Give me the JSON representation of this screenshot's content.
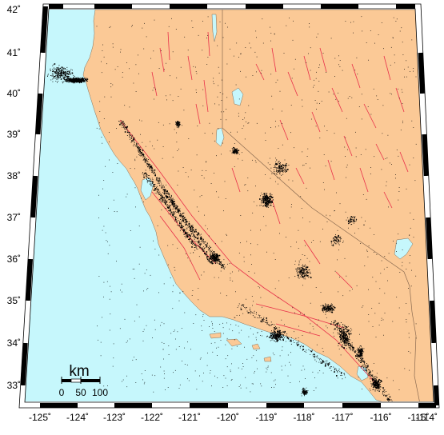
{
  "map": {
    "lat_labels": [
      "42˚",
      "41˚",
      "40˚",
      "39˚",
      "38˚",
      "37˚",
      "36˚",
      "35˚",
      "34˚",
      "33˚"
    ],
    "lon_labels": [
      "-125˚",
      "-124˚",
      "-123˚",
      "-122˚",
      "-121˚",
      "-120˚",
      "-119˚",
      "-118˚",
      "-117˚",
      "-116˚",
      "-115˚",
      "-114˚"
    ],
    "scale_bar": {
      "unit": "km",
      "ticks": [
        "0",
        "50",
        "100"
      ]
    },
    "colors": {
      "ocean": "#c6f7fc",
      "land": "#fbc996",
      "lakes": "#c6f7fc",
      "faults": "#e8304a",
      "earthquakes": "#000000",
      "borders": "#8a6a50",
      "frame": "#000000"
    }
  }
}
